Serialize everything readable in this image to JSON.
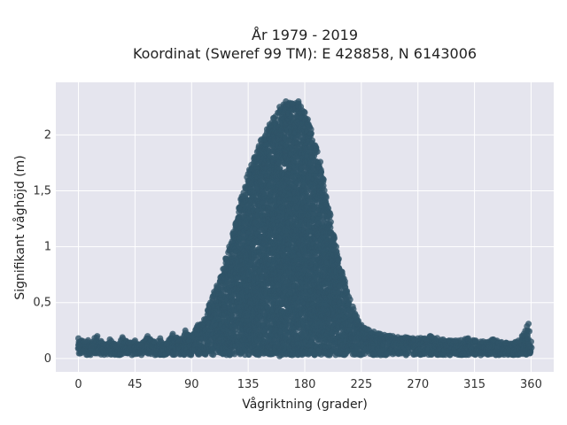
{
  "chart_data": {
    "type": "scatter",
    "title_line1": "År 1979 - 2019",
    "title_line2": "Koordinat (Sweref 99 TM): E 428858, N 6143006",
    "xlabel": "Vågriktning (grader)",
    "ylabel": "Signifikant våghöjd (m)",
    "xlim": [
      -18,
      378
    ],
    "ylim": [
      -0.12,
      2.47
    ],
    "x_ticks": [
      0,
      45,
      90,
      135,
      180,
      225,
      270,
      315,
      360
    ],
    "x_tick_labels": [
      "0",
      "45",
      "90",
      "135",
      "180",
      "225",
      "270",
      "315",
      "360"
    ],
    "y_ticks": [
      0,
      0.5,
      1,
      1.5,
      2
    ],
    "y_tick_labels": [
      "0",
      "0,5",
      "1",
      "1,5",
      "2"
    ],
    "grid": true,
    "marker_color": "#2f5468",
    "background_color": "#e5e5ee",
    "series": [
      {
        "points": [
          [
            0,
            0.12
          ],
          [
            0,
            0.18
          ],
          [
            5,
            0.15
          ],
          [
            10,
            0.1
          ],
          [
            15,
            0.2
          ],
          [
            20,
            0.13
          ],
          [
            25,
            0.17
          ],
          [
            30,
            0.11
          ],
          [
            35,
            0.19
          ],
          [
            40,
            0.14
          ],
          [
            45,
            0.16
          ],
          [
            50,
            0.12
          ],
          [
            55,
            0.2
          ],
          [
            60,
            0.15
          ],
          [
            65,
            0.18
          ],
          [
            70,
            0.13
          ],
          [
            75,
            0.22
          ],
          [
            80,
            0.16
          ],
          [
            85,
            0.25
          ],
          [
            90,
            0.2
          ],
          [
            95,
            0.3
          ],
          [
            100,
            0.35
          ],
          [
            105,
            0.5
          ],
          [
            110,
            0.65
          ],
          [
            115,
            0.8
          ],
          [
            120,
            1.0
          ],
          [
            125,
            1.2
          ],
          [
            130,
            1.45
          ],
          [
            135,
            1.65
          ],
          [
            140,
            1.8
          ],
          [
            145,
            1.95
          ],
          [
            150,
            2.05
          ],
          [
            155,
            2.15
          ],
          [
            160,
            2.25
          ],
          [
            165,
            2.3
          ],
          [
            170,
            2.28
          ],
          [
            175,
            2.3
          ],
          [
            180,
            2.2
          ],
          [
            185,
            2.05
          ],
          [
            190,
            1.85
          ],
          [
            195,
            1.6
          ],
          [
            200,
            1.3
          ],
          [
            205,
            1.0
          ],
          [
            210,
            0.75
          ],
          [
            215,
            0.55
          ],
          [
            220,
            0.4
          ],
          [
            225,
            0.3
          ],
          [
            230,
            0.26
          ],
          [
            240,
            0.22
          ],
          [
            250,
            0.2
          ],
          [
            260,
            0.19
          ],
          [
            270,
            0.18
          ],
          [
            280,
            0.2
          ],
          [
            290,
            0.17
          ],
          [
            300,
            0.16
          ],
          [
            310,
            0.18
          ],
          [
            320,
            0.15
          ],
          [
            330,
            0.17
          ],
          [
            340,
            0.14
          ],
          [
            350,
            0.16
          ],
          [
            358,
            0.31
          ],
          [
            360,
            0.15
          ],
          [
            150,
            0.05
          ],
          [
            160,
            0.02
          ],
          [
            170,
            0.03
          ],
          [
            180,
            0.05
          ],
          [
            200,
            0.04
          ],
          [
            120,
            0.06
          ],
          [
            240,
            0.05
          ],
          [
            300,
            0.05
          ],
          [
            60,
            0.07
          ],
          [
            20,
            0.06
          ],
          [
            320,
            0.03
          ]
        ]
      }
    ]
  }
}
